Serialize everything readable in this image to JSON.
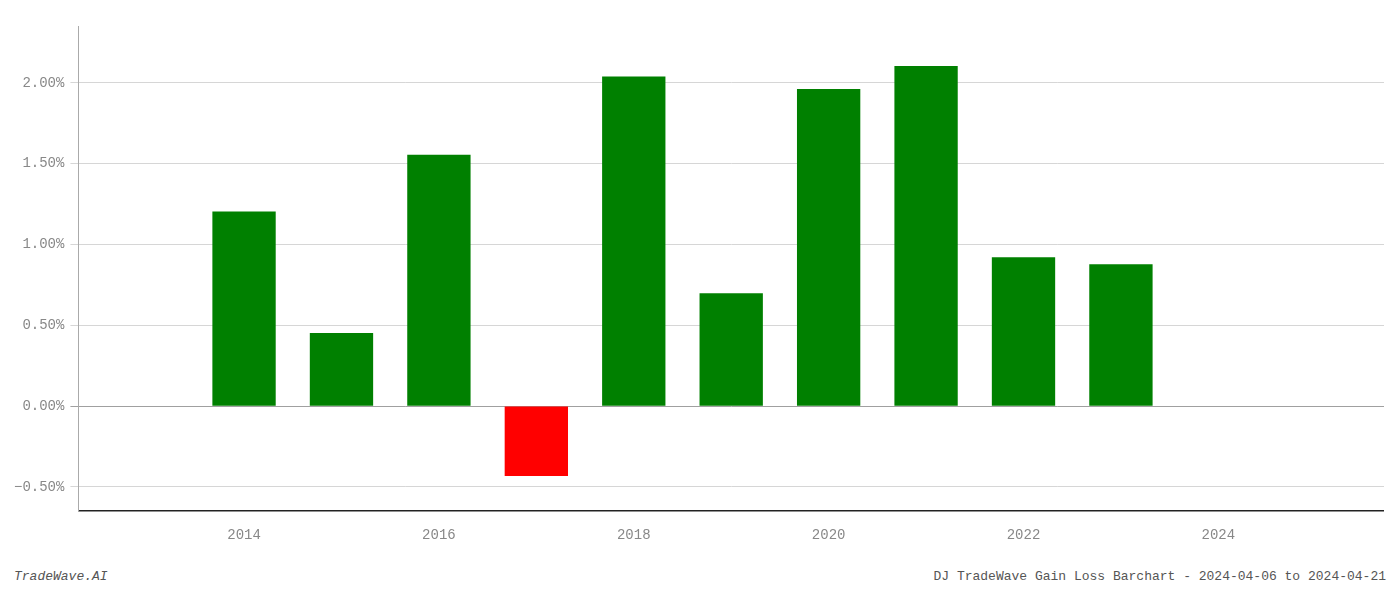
{
  "chart_data": {
    "type": "bar",
    "title": "DJ TradeWave Gain Loss Barchart - 2024-04-06 to 2024-04-21",
    "annotations": [
      "TradeWave.AI"
    ],
    "x": [
      2014,
      2015,
      2016,
      2017,
      2018,
      2019,
      2020,
      2021,
      2022,
      2023
    ],
    "values": [
      0.01205,
      0.00452,
      0.01555,
      -0.00432,
      0.0204,
      0.00698,
      0.01963,
      0.02105,
      0.00922,
      0.00878
    ],
    "colors": [
      "#008000",
      "#008000",
      "#008000",
      "#ff0000",
      "#008000",
      "#008000",
      "#008000",
      "#008000",
      "#008000",
      "#008000"
    ],
    "xlim": [
      2012.3,
      2025.7
    ],
    "xticks": [
      2014,
      2016,
      2018,
      2020,
      2022,
      2024
    ],
    "ylim": [
      -0.0065,
      0.0235
    ],
    "yticks": [
      {
        "value": -0.005,
        "label": "−0.50%"
      },
      {
        "value": 0.0,
        "label": "0.00%"
      },
      {
        "value": 0.005,
        "label": "0.50%"
      },
      {
        "value": 0.01,
        "label": "1.00%"
      },
      {
        "value": 0.015,
        "label": "1.50%"
      },
      {
        "value": 0.02,
        "label": "2.00%"
      }
    ],
    "grid": "y"
  }
}
